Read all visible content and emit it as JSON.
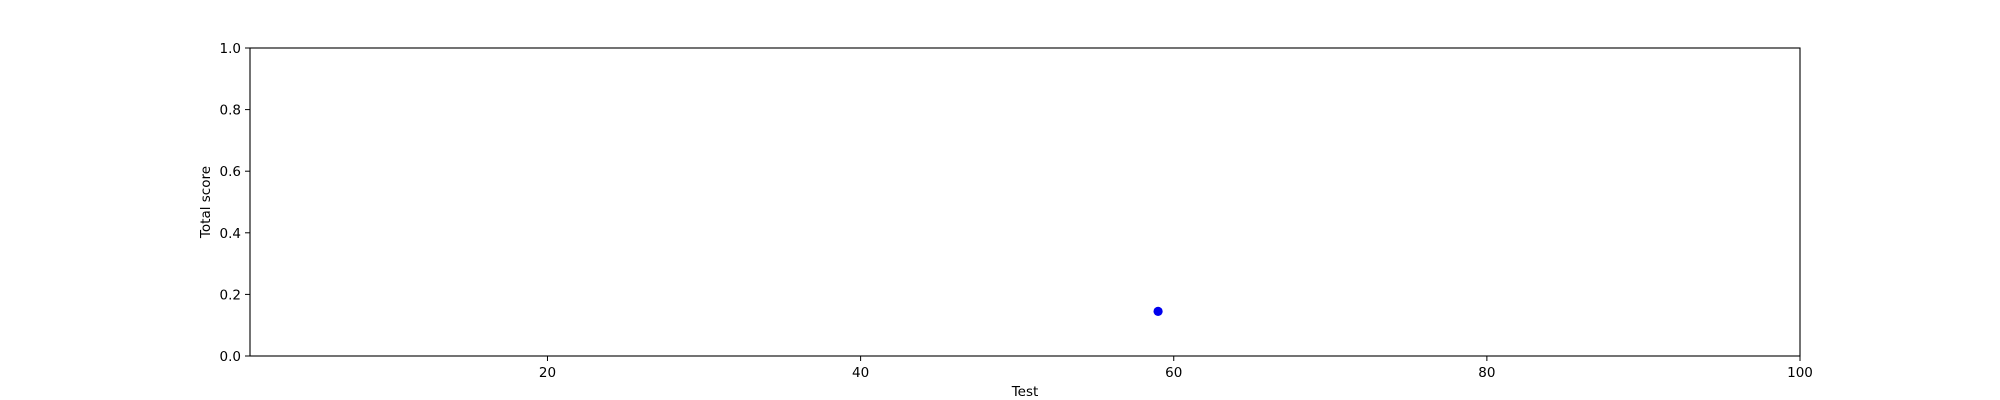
{
  "chart_data": {
    "type": "scatter",
    "title": "",
    "xlabel": "Test",
    "ylabel": "Total score",
    "xlim": [
      1,
      100
    ],
    "ylim": [
      0.0,
      1.0
    ],
    "x_ticks": [
      20,
      40,
      60,
      80,
      100
    ],
    "y_ticks": [
      0.0,
      0.2,
      0.4,
      0.6,
      0.8,
      1.0
    ],
    "x_tick_labels": [
      "20",
      "40",
      "60",
      "80",
      "100"
    ],
    "y_tick_labels": [
      "0.0",
      "0.2",
      "0.4",
      "0.6",
      "0.8",
      "1.0"
    ],
    "grid": false,
    "legend": "none",
    "series": [
      {
        "color": "#0000ee",
        "points": [
          {
            "x": 59,
            "y": 0.145
          }
        ]
      }
    ]
  }
}
